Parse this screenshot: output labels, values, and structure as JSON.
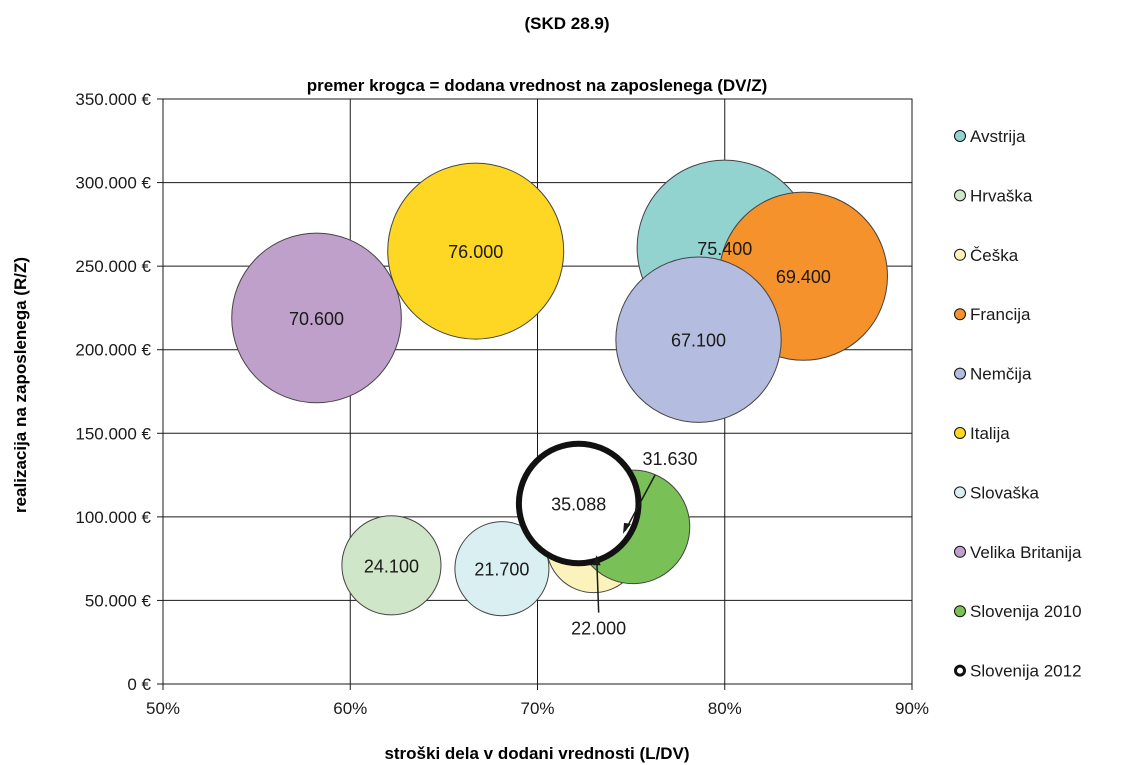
{
  "chart_data": {
    "type": "bubble",
    "heading": "(SKD 28.9)",
    "title": "premer krogca = dodana vrednost na zaposlenega (DV/Z)",
    "xlabel": "stroški dela v dodani vrednosti (L/DV)",
    "ylabel": "realizacija na zaposlenega (R/Z)",
    "xlim": [
      0.5,
      0.9
    ],
    "ylim": [
      0,
      350000
    ],
    "x_ticks": [
      {
        "value": 0.5,
        "label": "50%"
      },
      {
        "value": 0.6,
        "label": "60%"
      },
      {
        "value": 0.7,
        "label": "70%"
      },
      {
        "value": 0.8,
        "label": "80%"
      },
      {
        "value": 0.9,
        "label": "90%"
      }
    ],
    "y_ticks": [
      {
        "value": 0,
        "label": "0 €"
      },
      {
        "value": 50000,
        "label": "50.000 €"
      },
      {
        "value": 100000,
        "label": "100.000 €"
      },
      {
        "value": 150000,
        "label": "150.000 €"
      },
      {
        "value": 200000,
        "label": "200.000 €"
      },
      {
        "value": 250000,
        "label": "250.000 €"
      },
      {
        "value": 300000,
        "label": "300.000 €"
      },
      {
        "value": 350000,
        "label": "350.000 €"
      }
    ],
    "grid": true,
    "legend_position": "right",
    "series": [
      {
        "name": "Avstrija",
        "x": 0.8,
        "y": 261000,
        "size": 75400,
        "label": "75.400",
        "color": "#92d3d0",
        "outline": false
      },
      {
        "name": "Hrvaška",
        "x": 0.622,
        "y": 71000,
        "size": 24100,
        "label": "24.100",
        "color": "#cfe6c8",
        "outline": false
      },
      {
        "name": "Češka",
        "x": 0.73,
        "y": 83000,
        "size": 22000,
        "label": "22.000",
        "color": "#fbf3bb",
        "outline": false
      },
      {
        "name": "Francija",
        "x": 0.842,
        "y": 244000,
        "size": 69400,
        "label": "69.400",
        "color": "#f5922b",
        "outline": false
      },
      {
        "name": "Nemčija",
        "x": 0.786,
        "y": 206000,
        "size": 67100,
        "label": "67.100",
        "color": "#b4bcdf",
        "outline": false
      },
      {
        "name": "Italija",
        "x": 0.667,
        "y": 259000,
        "size": 76000,
        "label": "76.000",
        "color": "#fdd724",
        "outline": false
      },
      {
        "name": "Slovaška",
        "x": 0.681,
        "y": 69000,
        "size": 21700,
        "label": "21.700",
        "color": "#d9eff1",
        "outline": false
      },
      {
        "name": "Velika Britanija",
        "x": 0.582,
        "y": 219000,
        "size": 70600,
        "label": "70.600",
        "color": "#bfa0cb",
        "outline": false
      },
      {
        "name": "Slovenija 2010",
        "x": 0.751,
        "y": 94000,
        "size": 31630,
        "label": "31.630",
        "color": "#79c157",
        "outline": false
      },
      {
        "name": "Slovenija 2012",
        "x": 0.722,
        "y": 108000,
        "size": 35088,
        "label": "35.088",
        "color": "#ffffff",
        "outline": true
      }
    ]
  }
}
